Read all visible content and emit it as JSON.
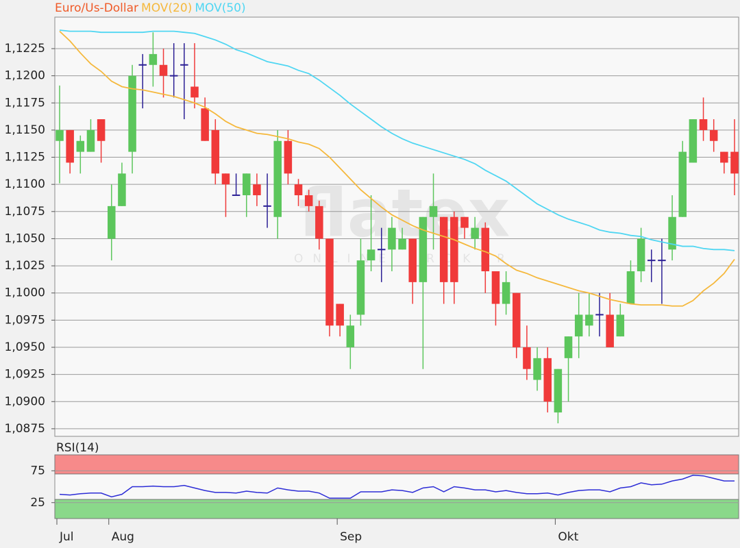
{
  "chart_data": [
    {
      "type": "candlestick",
      "categories": [
        "Jul",
        null,
        null,
        null,
        null,
        "Aug",
        null,
        null,
        null,
        null,
        null,
        null,
        null,
        null,
        null,
        null,
        null,
        null,
        null,
        null,
        null,
        null,
        null,
        null,
        null,
        null,
        null,
        "Sep",
        null,
        null,
        null,
        null,
        null,
        null,
        null,
        null,
        null,
        null,
        null,
        null,
        null,
        null,
        null,
        null,
        null,
        null,
        null,
        null,
        "Okt",
        null,
        null,
        null,
        null,
        null,
        null,
        null,
        null,
        null,
        null,
        null,
        null,
        null,
        null,
        null,
        null,
        null
      ],
      "series": [
        {
          "name": "Euro/Us-Dollar",
          "color": "#f05a28",
          "open": [
            1.114,
            1.115,
            1.113,
            1.113,
            1.116,
            1.105,
            1.108,
            1.113,
            1.121,
            1.121,
            1.121,
            1.12,
            1.121,
            1.119,
            1.117,
            1.115,
            1.111,
            1.109,
            1.109,
            1.11,
            1.108,
            1.107,
            1.114,
            1.11,
            1.109,
            1.108,
            1.105,
            1.099,
            1.095,
            1.098,
            1.103,
            1.104,
            1.104,
            1.104,
            1.105,
            1.101,
            1.107,
            1.107,
            1.107,
            1.107,
            1.105,
            1.106,
            1.102,
            1.099,
            1.1,
            1.095,
            1.092,
            1.094,
            1.089,
            1.094,
            1.096,
            1.097,
            1.098,
            1.098,
            1.096,
            1.099,
            1.102,
            1.103,
            1.103,
            1.104,
            1.107,
            1.112,
            1.116,
            1.115,
            1.113,
            1.113
          ],
          "high": [
            1.1191,
            1.115,
            1.1145,
            1.116,
            1.116,
            1.11,
            1.112,
            1.121,
            1.122,
            1.124,
            1.1225,
            1.123,
            1.123,
            1.123,
            1.118,
            1.116,
            1.111,
            1.111,
            1.111,
            1.111,
            1.111,
            1.115,
            1.115,
            1.1105,
            1.1095,
            1.1085,
            1.105,
            1.099,
            1.098,
            1.105,
            1.109,
            1.106,
            1.107,
            1.106,
            1.105,
            1.107,
            1.111,
            1.107,
            1.1075,
            1.107,
            1.107,
            1.1065,
            1.102,
            1.102,
            1.1,
            1.097,
            1.095,
            1.095,
            1.093,
            1.096,
            1.1,
            1.1,
            1.1,
            1.1,
            1.099,
            1.103,
            1.106,
            1.104,
            1.105,
            1.109,
            1.114,
            1.116,
            1.118,
            1.116,
            1.113,
            1.116
          ],
          "low": [
            1.1101,
            1.111,
            1.111,
            1.113,
            1.112,
            1.103,
            1.108,
            1.111,
            1.117,
            1.119,
            1.118,
            1.118,
            1.116,
            1.117,
            1.114,
            1.11,
            1.107,
            1.109,
            1.107,
            1.108,
            1.106,
            1.105,
            1.11,
            1.108,
            1.1075,
            1.104,
            1.096,
            1.096,
            1.093,
            1.097,
            1.102,
            1.101,
            1.102,
            1.104,
            1.099,
            1.093,
            1.104,
            1.099,
            1.099,
            1.105,
            1.104,
            1.1,
            1.097,
            1.098,
            1.094,
            1.092,
            1.091,
            1.089,
            1.088,
            1.09,
            1.094,
            1.096,
            1.096,
            1.095,
            1.096,
            1.099,
            1.101,
            1.101,
            1.099,
            1.103,
            1.107,
            1.112,
            1.114,
            1.113,
            1.111,
            1.109
          ],
          "close": [
            1.115,
            1.112,
            1.114,
            1.115,
            1.114,
            1.108,
            1.111,
            1.12,
            1.121,
            1.122,
            1.12,
            1.12,
            1.121,
            1.118,
            1.114,
            1.111,
            1.11,
            1.109,
            1.111,
            1.109,
            1.108,
            1.114,
            1.111,
            1.109,
            1.108,
            1.105,
            1.097,
            1.097,
            1.097,
            1.103,
            1.104,
            1.104,
            1.106,
            1.105,
            1.101,
            1.107,
            1.108,
            1.101,
            1.101,
            1.106,
            1.106,
            1.102,
            1.099,
            1.101,
            1.095,
            1.093,
            1.094,
            1.09,
            1.093,
            1.096,
            1.098,
            1.098,
            1.098,
            1.095,
            1.098,
            1.102,
            1.105,
            1.103,
            1.103,
            1.107,
            1.113,
            1.116,
            1.115,
            1.114,
            1.112,
            1.111
          ]
        },
        {
          "name": "MOV(20)",
          "color": "#f5b83c",
          "values": [
            1.1241,
            1.1232,
            1.1221,
            1.1211,
            1.1204,
            1.1195,
            1.119,
            1.1188,
            1.1187,
            1.1185,
            1.1183,
            1.1181,
            1.1178,
            1.1175,
            1.1171,
            1.1165,
            1.1158,
            1.1153,
            1.115,
            1.1147,
            1.1146,
            1.1144,
            1.1142,
            1.1139,
            1.1137,
            1.1133,
            1.1125,
            1.1115,
            1.1105,
            1.1095,
            1.1087,
            1.1079,
            1.1072,
            1.1067,
            1.1062,
            1.1058,
            1.1055,
            1.1052,
            1.1049,
            1.1045,
            1.1041,
            1.1038,
            1.1034,
            1.1027,
            1.1021,
            1.1018,
            1.1014,
            1.1011,
            1.1008,
            1.1005,
            1.1002,
            1.1,
            1.0997,
            1.0994,
            1.0992,
            1.099,
            1.0989,
            1.0989,
            1.0989,
            1.0988,
            1.0988,
            1.0993,
            1.1002,
            1.1009,
            1.1018,
            1.1031
          ]
        },
        {
          "name": "MOV(50)",
          "color": "#4fd6f2",
          "values": [
            1.1242,
            1.1241,
            1.1241,
            1.1241,
            1.124,
            1.124,
            1.124,
            1.124,
            1.124,
            1.1241,
            1.1241,
            1.1241,
            1.124,
            1.1239,
            1.1236,
            1.1233,
            1.1229,
            1.1224,
            1.1221,
            1.1217,
            1.1213,
            1.1211,
            1.1209,
            1.1205,
            1.1202,
            1.1196,
            1.1189,
            1.1182,
            1.1174,
            1.1167,
            1.116,
            1.1153,
            1.1147,
            1.1142,
            1.1138,
            1.1135,
            1.1132,
            1.1129,
            1.1126,
            1.1123,
            1.1119,
            1.1113,
            1.1108,
            1.1103,
            1.1096,
            1.1089,
            1.1082,
            1.1077,
            1.1072,
            1.1068,
            1.1065,
            1.1062,
            1.1058,
            1.1056,
            1.1055,
            1.1053,
            1.1052,
            1.1049,
            1.1047,
            1.1045,
            1.1043,
            1.1043,
            1.1041,
            1.104,
            1.104,
            1.1039
          ]
        }
      ],
      "up_color": "#5cc65c",
      "down_color": "#f03a3a",
      "doji_color": "#2b1f95",
      "ylim": [
        1.0868,
        1.1254
      ],
      "yticks": [
        {
          "value": 1.0875,
          "label": "1,0875"
        },
        {
          "value": 1.09,
          "label": "1,0900"
        },
        {
          "value": 1.0925,
          "label": "1,0925"
        },
        {
          "value": 1.095,
          "label": "1,0950"
        },
        {
          "value": 1.0975,
          "label": "1,0975"
        },
        {
          "value": 1.1,
          "label": "1,1000"
        },
        {
          "value": 1.1025,
          "label": "1,1025"
        },
        {
          "value": 1.105,
          "label": "1,1050"
        },
        {
          "value": 1.1075,
          "label": "1,1075"
        },
        {
          "value": 1.11,
          "label": "1,1100"
        },
        {
          "value": 1.1125,
          "label": "1,1125"
        },
        {
          "value": 1.115,
          "label": "1,1150"
        },
        {
          "value": 1.1175,
          "label": "1,1175"
        },
        {
          "value": 1.12,
          "label": "1,1200"
        },
        {
          "value": 1.1225,
          "label": "1,1225"
        }
      ],
      "grid": true,
      "watermark": {
        "logo": "flatex",
        "tagline": "ONLINE BROKER"
      }
    },
    {
      "type": "line",
      "series": [
        {
          "name": "RSI(14)",
          "color": "#2c2cd6",
          "values": [
            38,
            37,
            39,
            40,
            40,
            34,
            38,
            50,
            50,
            51,
            50,
            50,
            52,
            48,
            44,
            41,
            41,
            40,
            43,
            41,
            40,
            48,
            45,
            43,
            43,
            40,
            32,
            32,
            32,
            42,
            42,
            42,
            45,
            44,
            41,
            48,
            50,
            42,
            50,
            48,
            45,
            45,
            42,
            44,
            41,
            39,
            39,
            40,
            37,
            41,
            44,
            45,
            45,
            42,
            48,
            50,
            56,
            53,
            54,
            59,
            62,
            68,
            67,
            63,
            59,
            59
          ]
        }
      ],
      "ylim": [
        0,
        100
      ],
      "yticks": [
        25,
        75
      ],
      "bands": [
        {
          "from": 70,
          "to": 100,
          "color": "#f78a8a"
        },
        {
          "from": 0,
          "to": 30,
          "color": "#8ad88a"
        }
      ],
      "grid": true
    }
  ]
}
